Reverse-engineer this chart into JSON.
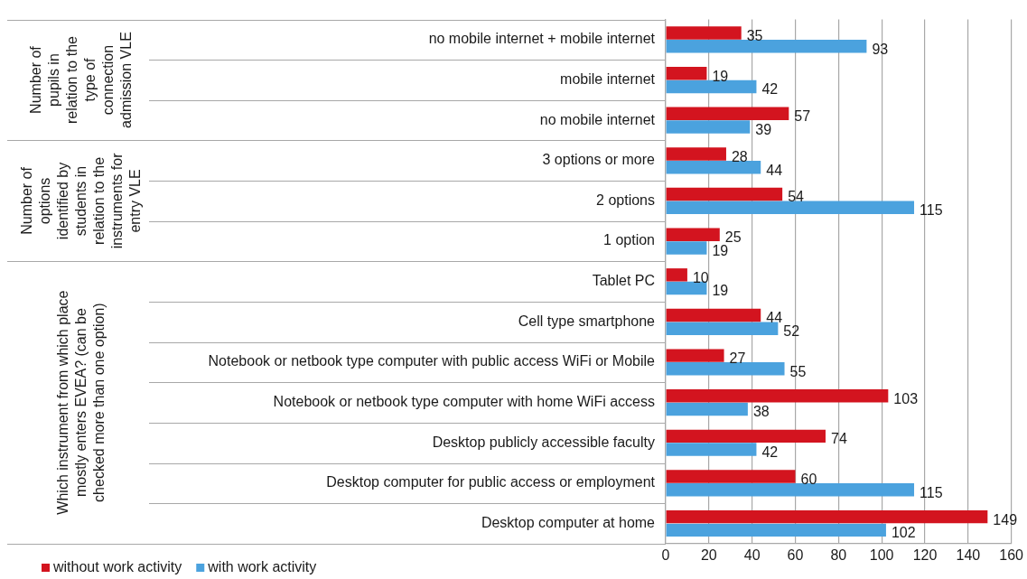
{
  "chart_data": {
    "type": "bar",
    "orientation": "horizontal",
    "categories": [
      "no mobile internet + mobile internet",
      "mobile internet",
      "no mobile internet",
      "3 options or more",
      "2 options",
      "1 option",
      "Tablet PC",
      "Cell type smartphone",
      "Notebook or netbook type computer with public access WiFi or Mobile",
      "Notebook or netbook type computer with home WiFi access",
      "Desktop publicly accessible faculty",
      "Desktop computer for public access or employment",
      "Desktop computer at home"
    ],
    "series": [
      {
        "name": "without work activity",
        "color": "#d3141f",
        "values": [
          35,
          19,
          57,
          28,
          54,
          25,
          10,
          44,
          27,
          103,
          74,
          60,
          149
        ]
      },
      {
        "name": "with work activity",
        "color": "#4ba2de",
        "values": [
          93,
          42,
          39,
          44,
          115,
          19,
          19,
          52,
          55,
          38,
          42,
          115,
          102
        ]
      }
    ],
    "xlim": [
      0,
      160
    ],
    "xticks": [
      0,
      20,
      40,
      60,
      80,
      100,
      120,
      140,
      160
    ],
    "grid": "x",
    "legend": "bottom left",
    "data_labels": true,
    "annotations": [
      "Number of pupils in relation to the type of connection admission VLE",
      "Number of options identified by students in relation to the instruments for entry VLE",
      "Which instrument from which place mostly enters EVEA? (can be checked more than one option)"
    ]
  }
}
